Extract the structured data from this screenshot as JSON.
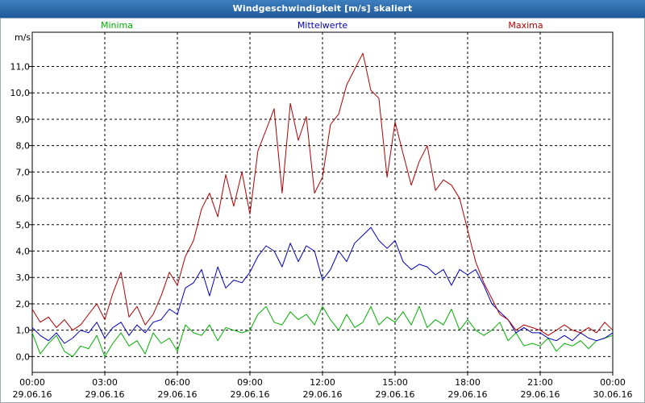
{
  "window": {
    "title": "Windgeschwindigkeit [m/s] skaliert"
  },
  "chart_data": {
    "type": "line",
    "title": "Windgeschwindigkeit [m/s] skaliert",
    "ylabel": "m/s",
    "xlabel": "",
    "ylim": [
      -0.6,
      12.3
    ],
    "yticks": [
      0.0,
      1.0,
      2.0,
      3.0,
      4.0,
      5.0,
      6.0,
      7.0,
      8.0,
      9.0,
      10.0,
      11.0
    ],
    "ytick_labels": [
      "0,0",
      "1,0",
      "2,0",
      "3,0",
      "4,0",
      "5,0",
      "6,0",
      "7,0",
      "8,0",
      "9,0",
      "10,0",
      "11,0"
    ],
    "x_range_hours": [
      0,
      24
    ],
    "x_ticks_hours": [
      0,
      3,
      6,
      9,
      12,
      15,
      18,
      21,
      24
    ],
    "x_tick_labels": [
      [
        "00:00",
        "29.06.16"
      ],
      [
        "03:00",
        "29.06.16"
      ],
      [
        "06:00",
        "29.06.16"
      ],
      [
        "09:00",
        "29.06.16"
      ],
      [
        "12:00",
        "29.06.16"
      ],
      [
        "15:00",
        "29.06.16"
      ],
      [
        "18:00",
        "29.06.16"
      ],
      [
        "21:00",
        "29.06.16"
      ],
      [
        "00:00",
        "30.06.16"
      ]
    ],
    "grid": true,
    "legend_position": "top",
    "series": [
      {
        "name": "Minima",
        "color": "#00b000",
        "x": [
          0,
          0.33,
          0.67,
          1,
          1.33,
          1.67,
          2,
          2.33,
          2.67,
          3,
          3.33,
          3.67,
          4,
          4.33,
          4.67,
          5,
          5.33,
          5.67,
          6,
          6.33,
          6.67,
          7,
          7.33,
          7.67,
          8,
          8.33,
          8.67,
          9,
          9.33,
          9.67,
          10,
          10.33,
          10.67,
          11,
          11.33,
          11.67,
          12,
          12.33,
          12.67,
          13,
          13.33,
          13.67,
          14,
          14.33,
          14.67,
          15,
          15.33,
          15.67,
          16,
          16.33,
          16.67,
          17,
          17.33,
          17.67,
          18,
          18.33,
          18.67,
          19,
          19.33,
          19.67,
          20,
          20.33,
          20.67,
          21,
          21.33,
          21.67,
          22,
          22.33,
          22.67,
          23,
          23.33,
          23.67,
          24
        ],
        "y": [
          0.9,
          0.1,
          0.5,
          0.8,
          0.2,
          0.0,
          0.4,
          0.3,
          0.8,
          0.0,
          0.5,
          0.9,
          0.4,
          0.6,
          0.1,
          0.9,
          0.5,
          0.7,
          0.2,
          1.2,
          0.9,
          0.8,
          1.2,
          0.6,
          1.1,
          1.0,
          0.9,
          1.0,
          1.6,
          1.9,
          1.3,
          1.2,
          1.7,
          1.4,
          1.6,
          1.2,
          1.9,
          1.4,
          1.0,
          1.6,
          1.1,
          1.3,
          1.9,
          1.2,
          1.5,
          1.3,
          1.7,
          1.2,
          1.9,
          1.1,
          1.4,
          1.2,
          1.8,
          1.0,
          1.4,
          1.0,
          0.8,
          1.0,
          1.3,
          0.6,
          0.9,
          0.4,
          0.5,
          0.4,
          0.7,
          0.2,
          0.5,
          0.4,
          0.6,
          0.3,
          0.6,
          0.7,
          0.8
        ]
      },
      {
        "name": "Mittelwerte",
        "color": "#0000c0",
        "x": [
          0,
          0.33,
          0.67,
          1,
          1.33,
          1.67,
          2,
          2.33,
          2.67,
          3,
          3.33,
          3.67,
          4,
          4.33,
          4.67,
          5,
          5.33,
          5.67,
          6,
          6.33,
          6.67,
          7,
          7.33,
          7.67,
          8,
          8.33,
          8.67,
          9,
          9.33,
          9.67,
          10,
          10.33,
          10.67,
          11,
          11.33,
          11.67,
          12,
          12.33,
          12.67,
          13,
          13.33,
          13.67,
          14,
          14.33,
          14.67,
          15,
          15.33,
          15.67,
          16,
          16.33,
          16.67,
          17,
          17.33,
          17.67,
          18,
          18.33,
          18.67,
          19,
          19.33,
          19.67,
          20,
          20.33,
          20.67,
          21,
          21.33,
          21.67,
          22,
          22.33,
          22.67,
          23,
          23.33,
          23.67,
          24
        ],
        "y": [
          1.1,
          0.8,
          0.6,
          0.9,
          0.5,
          0.7,
          1.0,
          0.9,
          1.3,
          0.7,
          1.1,
          1.3,
          0.8,
          1.2,
          0.9,
          1.3,
          1.4,
          1.8,
          1.6,
          2.6,
          2.8,
          3.3,
          2.3,
          3.4,
          2.6,
          2.9,
          2.8,
          3.2,
          3.8,
          4.2,
          4.0,
          3.4,
          4.3,
          3.6,
          4.2,
          4.0,
          2.9,
          3.3,
          4.0,
          3.6,
          4.3,
          4.6,
          4.9,
          4.4,
          4.1,
          4.4,
          3.6,
          3.3,
          3.5,
          3.4,
          3.1,
          3.3,
          2.7,
          3.3,
          3.1,
          3.3,
          2.7,
          2.0,
          1.7,
          1.4,
          0.9,
          1.1,
          0.9,
          0.9,
          0.7,
          0.6,
          0.8,
          0.6,
          0.9,
          0.7,
          0.6,
          0.7,
          0.9
        ]
      },
      {
        "name": "Maxima",
        "color": "#b00000",
        "x": [
          0,
          0.33,
          0.67,
          1,
          1.33,
          1.67,
          2,
          2.33,
          2.67,
          3,
          3.33,
          3.67,
          4,
          4.33,
          4.67,
          5,
          5.33,
          5.67,
          6,
          6.33,
          6.67,
          7,
          7.33,
          7.67,
          8,
          8.33,
          8.67,
          9,
          9.33,
          9.67,
          10,
          10.33,
          10.67,
          11,
          11.33,
          11.67,
          12,
          12.33,
          12.67,
          13,
          13.33,
          13.67,
          14,
          14.33,
          14.67,
          15,
          15.33,
          15.67,
          16,
          16.33,
          16.67,
          17,
          17.33,
          17.67,
          18,
          18.33,
          18.67,
          19,
          19.33,
          19.67,
          20,
          20.33,
          20.67,
          21,
          21.33,
          21.67,
          22,
          22.33,
          22.67,
          23,
          23.33,
          23.67,
          24
        ],
        "y": [
          1.8,
          1.3,
          1.5,
          1.1,
          1.4,
          1.0,
          1.2,
          1.6,
          2.0,
          1.4,
          2.4,
          3.2,
          1.5,
          1.9,
          1.2,
          1.6,
          2.3,
          3.2,
          2.7,
          3.8,
          4.4,
          5.6,
          6.2,
          5.3,
          6.9,
          5.7,
          7.0,
          5.4,
          7.8,
          8.6,
          9.4,
          6.2,
          9.6,
          8.2,
          9.1,
          6.2,
          6.8,
          8.8,
          9.2,
          10.3,
          10.9,
          11.5,
          10.1,
          9.8,
          6.8,
          8.9,
          7.7,
          6.5,
          7.4,
          8.0,
          6.3,
          6.7,
          6.5,
          6.0,
          4.8,
          3.6,
          2.8,
          2.2,
          1.6,
          1.4,
          1.0,
          1.2,
          1.1,
          1.0,
          0.8,
          1.0,
          1.2,
          1.0,
          0.9,
          1.1,
          0.9,
          1.3,
          1.0
        ]
      }
    ]
  }
}
